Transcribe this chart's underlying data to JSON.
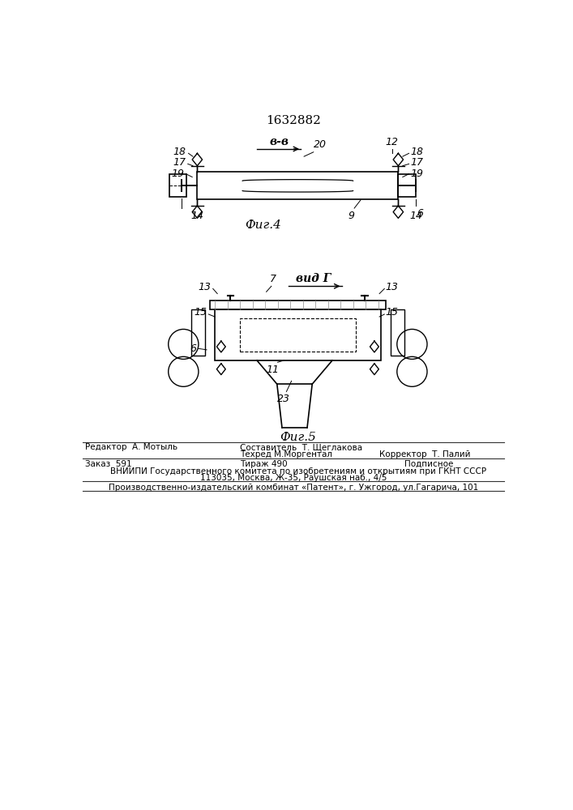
{
  "patent_number": "1632882",
  "background_color": "#ffffff",
  "line_color": "#000000",
  "fig4_label": "Фиг.4",
  "fig5_label": "Фиг.5",
  "section_label": "в-в",
  "view_label": "вид Г",
  "footer_line1_left": "Редактор  А. Мотыль",
  "footer_line1_center1": "Составитель  Т. Щеглакова",
  "footer_line1_center2": "Техред М.Моргентал",
  "footer_line1_right": "Корректор  Т. Палий",
  "footer_line2_left": "Заказ  591",
  "footer_line2_center": "Тираж 490",
  "footer_line2_right": "Подписное",
  "footer_line3": "    ВНИИПИ Государственного комитета по изобретениям и открытиям при ГКНТ СССР",
  "footer_line4": "113035, Москва, Ж-35, Раушская наб., 4/5",
  "footer_line5": "Производственно-издательский комбинат «Патент», г. Ужгород, ул.Гагарича, 101"
}
